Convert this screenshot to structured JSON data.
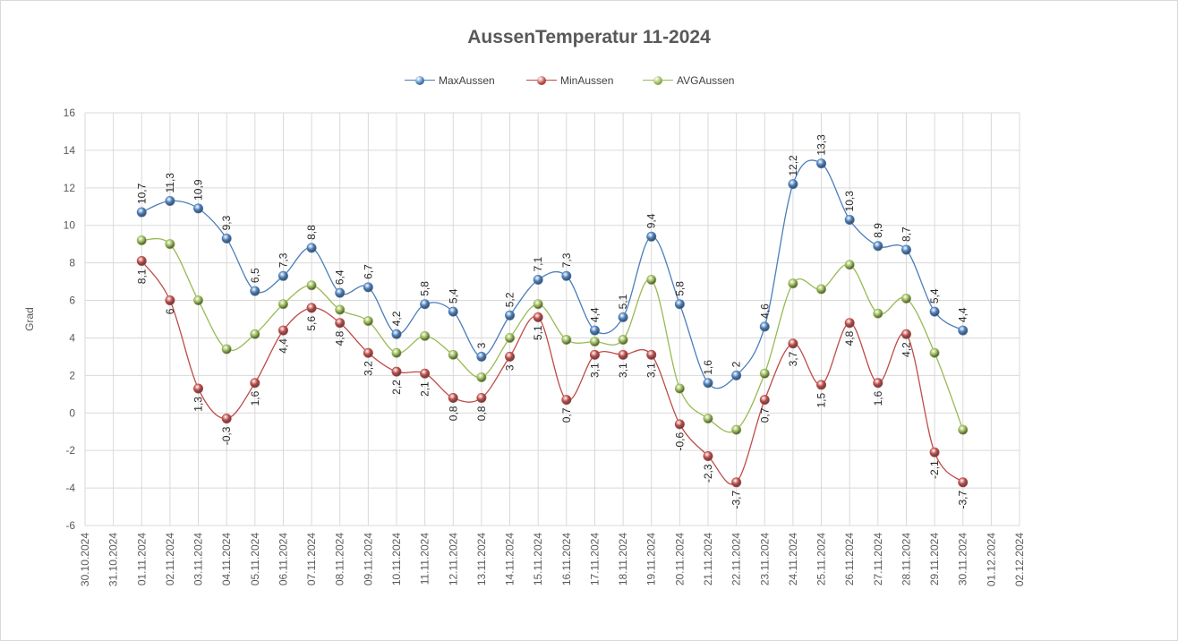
{
  "chart_data": {
    "type": "line",
    "title": "AussenTemperatur 11-2024",
    "xlabel": "",
    "ylabel": "Grad",
    "ylim": [
      -6,
      16
    ],
    "ytick_step": 2,
    "grid": true,
    "legend_position": "top",
    "x_categories": [
      "30.10.2024",
      "31.10.2024",
      "01.11.2024",
      "02.11.2024",
      "03.11.2024",
      "04.11.2024",
      "05.11.2024",
      "06.11.2024",
      "07.11.2024",
      "08.11.2024",
      "09.11.2024",
      "10.11.2024",
      "11.11.2024",
      "12.11.2024",
      "13.11.2024",
      "14.11.2024",
      "15.11.2024",
      "16.11.2024",
      "17.11.2024",
      "18.11.2024",
      "19.11.2024",
      "20.11.2024",
      "21.11.2024",
      "22.11.2024",
      "23.11.2024",
      "24.11.2024",
      "25.11.2024",
      "26.11.2024",
      "27.11.2024",
      "28.11.2024",
      "29.11.2024",
      "30.11.2024",
      "01.12.2024",
      "02.12.2024"
    ],
    "series": [
      {
        "name": "MaxAussen",
        "color": "#4a7ebb",
        "values": [
          null,
          null,
          10.7,
          11.3,
          10.9,
          9.3,
          6.5,
          7.3,
          8.8,
          6.4,
          6.7,
          4.2,
          5.8,
          5.4,
          3,
          5.2,
          7.1,
          7.3,
          4.4,
          5.1,
          9.4,
          5.8,
          1.6,
          2,
          4.6,
          12.2,
          13.3,
          10.3,
          8.9,
          8.7,
          5.4,
          4.4,
          null,
          null
        ],
        "labels": [
          "",
          "",
          "10,7",
          "11,3",
          "10,9",
          "9,3",
          "6,5",
          "7,3",
          "8,8",
          "6,4",
          "6,7",
          "4,2",
          "5,8",
          "5,4",
          "3",
          "5,2",
          "7,1",
          "7,3",
          "4,4",
          "5,1",
          "9,4",
          "5,8",
          "1,6",
          "2",
          "4,6",
          "12,2",
          "13,3",
          "10,3",
          "8,9",
          "8,7",
          "5,4",
          "4,4",
          "",
          ""
        ],
        "label_side": "above"
      },
      {
        "name": "MinAussen",
        "color": "#be4b48",
        "values": [
          null,
          null,
          8.1,
          6,
          1.3,
          -0.3,
          1.6,
          4.4,
          5.6,
          4.8,
          3.2,
          2.2,
          2.1,
          0.8,
          0.8,
          3,
          5.1,
          0.7,
          3.1,
          3.1,
          3.1,
          -0.6,
          -2.3,
          -3.7,
          0.7,
          3.7,
          1.5,
          4.8,
          1.6,
          4.2,
          -2.1,
          -3.7,
          null,
          null
        ],
        "labels": [
          "",
          "",
          "8,1",
          "6",
          "1,3",
          "-0,3",
          "1,6",
          "4,4",
          "5,6",
          "4,8",
          "3,2",
          "2,2",
          "2,1",
          "0,8",
          "0,8",
          "3",
          "5,1",
          "0,7",
          "3,1",
          "3,1",
          "3,1",
          "-0,6",
          "-2,3",
          "-3,7",
          "0,7",
          "3,7",
          "1,5",
          "4,8",
          "1,6",
          "4,2",
          "-2,1",
          "-3,7",
          "",
          ""
        ],
        "label_side": "below"
      },
      {
        "name": "AVGAussen",
        "color": "#98b954",
        "values": [
          null,
          null,
          9.2,
          9,
          6,
          3.4,
          4.2,
          5.8,
          6.8,
          5.5,
          4.9,
          3.2,
          4.1,
          3.1,
          1.9,
          4,
          5.8,
          3.9,
          3.8,
          3.9,
          7.1,
          1.3,
          -0.3,
          -0.9,
          2.1,
          6.9,
          6.6,
          7.9,
          5.3,
          6.1,
          3.2,
          -0.9,
          null,
          null
        ],
        "labels": null,
        "label_side": "none"
      }
    ]
  }
}
